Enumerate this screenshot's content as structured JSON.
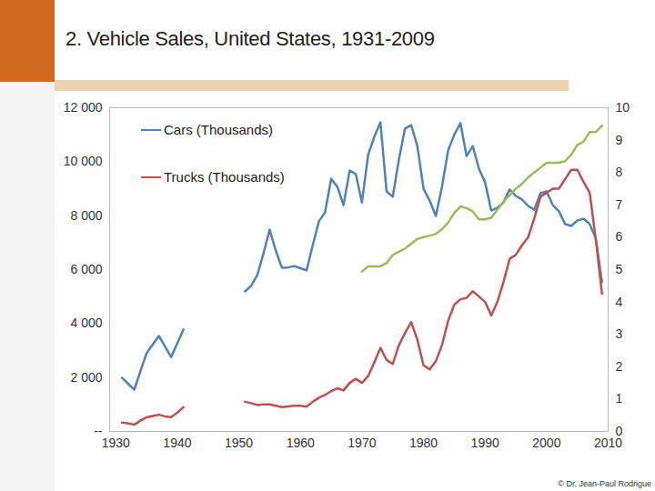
{
  "chart_data": {
    "type": "line",
    "title": "2. Vehicle Sales, United States, 1931-2009",
    "annotations": [
      "© Dr. Jean-Paul Rodrigue"
    ],
    "x": [
      1931,
      1932,
      1933,
      1934,
      1935,
      1936,
      1937,
      1938,
      1939,
      1940,
      1941,
      1942,
      1943,
      1944,
      1945,
      1946,
      1947,
      1948,
      1949,
      1950,
      1951,
      1952,
      1953,
      1954,
      1955,
      1956,
      1957,
      1958,
      1959,
      1960,
      1961,
      1962,
      1963,
      1964,
      1965,
      1966,
      1967,
      1968,
      1969,
      1970,
      1971,
      1972,
      1973,
      1974,
      1975,
      1976,
      1977,
      1978,
      1979,
      1980,
      1981,
      1982,
      1983,
      1984,
      1985,
      1986,
      1987,
      1988,
      1989,
      1990,
      1991,
      1992,
      1993,
      1994,
      1995,
      1996,
      1997,
      1998,
      1999,
      2000,
      2001,
      2002,
      2003,
      2004,
      2005,
      2006,
      2007,
      2008,
      2009
    ],
    "series": [
      {
        "name": "Cars (Thousands)",
        "color": "#4f81bd",
        "values": [
          1990,
          1770,
          1550,
          2230,
          2900,
          3220,
          3540,
          3150,
          2760,
          3270,
          3780,
          null,
          null,
          null,
          null,
          null,
          null,
          null,
          null,
          null,
          5190,
          5400,
          5800,
          6600,
          7480,
          6700,
          6070,
          6080,
          6130,
          6050,
          5970,
          6900,
          7790,
          8120,
          9370,
          9070,
          8390,
          9670,
          9540,
          8490,
          10250,
          10920,
          11460,
          8900,
          8700,
          10080,
          11230,
          11360,
          10580,
          9000,
          8560,
          7990,
          9070,
          10420,
          11000,
          11430,
          10210,
          10580,
          9740,
          9240,
          8190,
          8290,
          8490,
          8970,
          8730,
          8600,
          8360,
          8220,
          8830,
          8900,
          8390,
          8160,
          7690,
          7620,
          7820,
          7890,
          7690,
          7150,
          5530
        ]
      },
      {
        "name": "Trucks (Thousands)",
        "color": "#c0504d",
        "values": [
          330,
          300,
          250,
          400,
          520,
          570,
          620,
          560,
          530,
          700,
          900,
          null,
          null,
          null,
          null,
          null,
          null,
          null,
          null,
          null,
          1100,
          1050,
          980,
          1000,
          1000,
          950,
          900,
          930,
          950,
          950,
          920,
          1100,
          1250,
          1350,
          1500,
          1600,
          1520,
          1800,
          1950,
          1800,
          2050,
          2550,
          3100,
          2650,
          2500,
          3200,
          3650,
          4050,
          3400,
          2450,
          2300,
          2600,
          3200,
          4100,
          4700,
          4900,
          4950,
          5200,
          5000,
          4800,
          4300,
          4800,
          5550,
          6400,
          6550,
          6900,
          7200,
          7900,
          8700,
          8850,
          9000,
          9000,
          9350,
          9700,
          9700,
          9250,
          8850,
          7100,
          5100
        ]
      },
      {
        "color": "#9bbb59",
        "axis": "y2",
        "values": [
          null,
          null,
          null,
          null,
          null,
          null,
          null,
          null,
          null,
          null,
          null,
          null,
          null,
          null,
          null,
          null,
          null,
          null,
          null,
          null,
          null,
          null,
          null,
          null,
          null,
          null,
          null,
          null,
          null,
          null,
          null,
          null,
          null,
          null,
          null,
          null,
          null,
          null,
          null,
          4.94,
          5.1,
          5.1,
          5.1,
          5.2,
          5.45,
          5.55,
          5.65,
          5.8,
          5.95,
          6.0,
          6.05,
          6.1,
          6.25,
          6.45,
          6.75,
          6.95,
          6.9,
          6.8,
          6.55,
          6.55,
          6.6,
          6.85,
          7.1,
          7.3,
          7.5,
          7.65,
          7.85,
          8.0,
          8.15,
          8.3,
          8.3,
          8.3,
          8.35,
          8.55,
          8.85,
          8.95,
          9.25,
          9.25,
          9.45
        ]
      }
    ],
    "xlim": [
      1929,
      2010
    ],
    "xticks": [
      1930,
      1940,
      1950,
      1960,
      1970,
      1980,
      1990,
      2000,
      2010
    ],
    "ylim": [
      0,
      12000
    ],
    "yticks": [
      {
        "value": 0,
        "label": "--"
      },
      {
        "value": 2000,
        "label": "2 000"
      },
      {
        "value": 4000,
        "label": "4 000"
      },
      {
        "value": 6000,
        "label": "6 000"
      },
      {
        "value": 8000,
        "label": "8 000"
      },
      {
        "value": 10000,
        "label": "10 000"
      },
      {
        "value": 12000,
        "label": "12 000"
      }
    ],
    "y2lim": [
      0,
      10
    ],
    "y2ticks": [
      0,
      1,
      2,
      3,
      4,
      5,
      6,
      7,
      8,
      9,
      10
    ],
    "grid": false,
    "legend": "upper left"
  }
}
